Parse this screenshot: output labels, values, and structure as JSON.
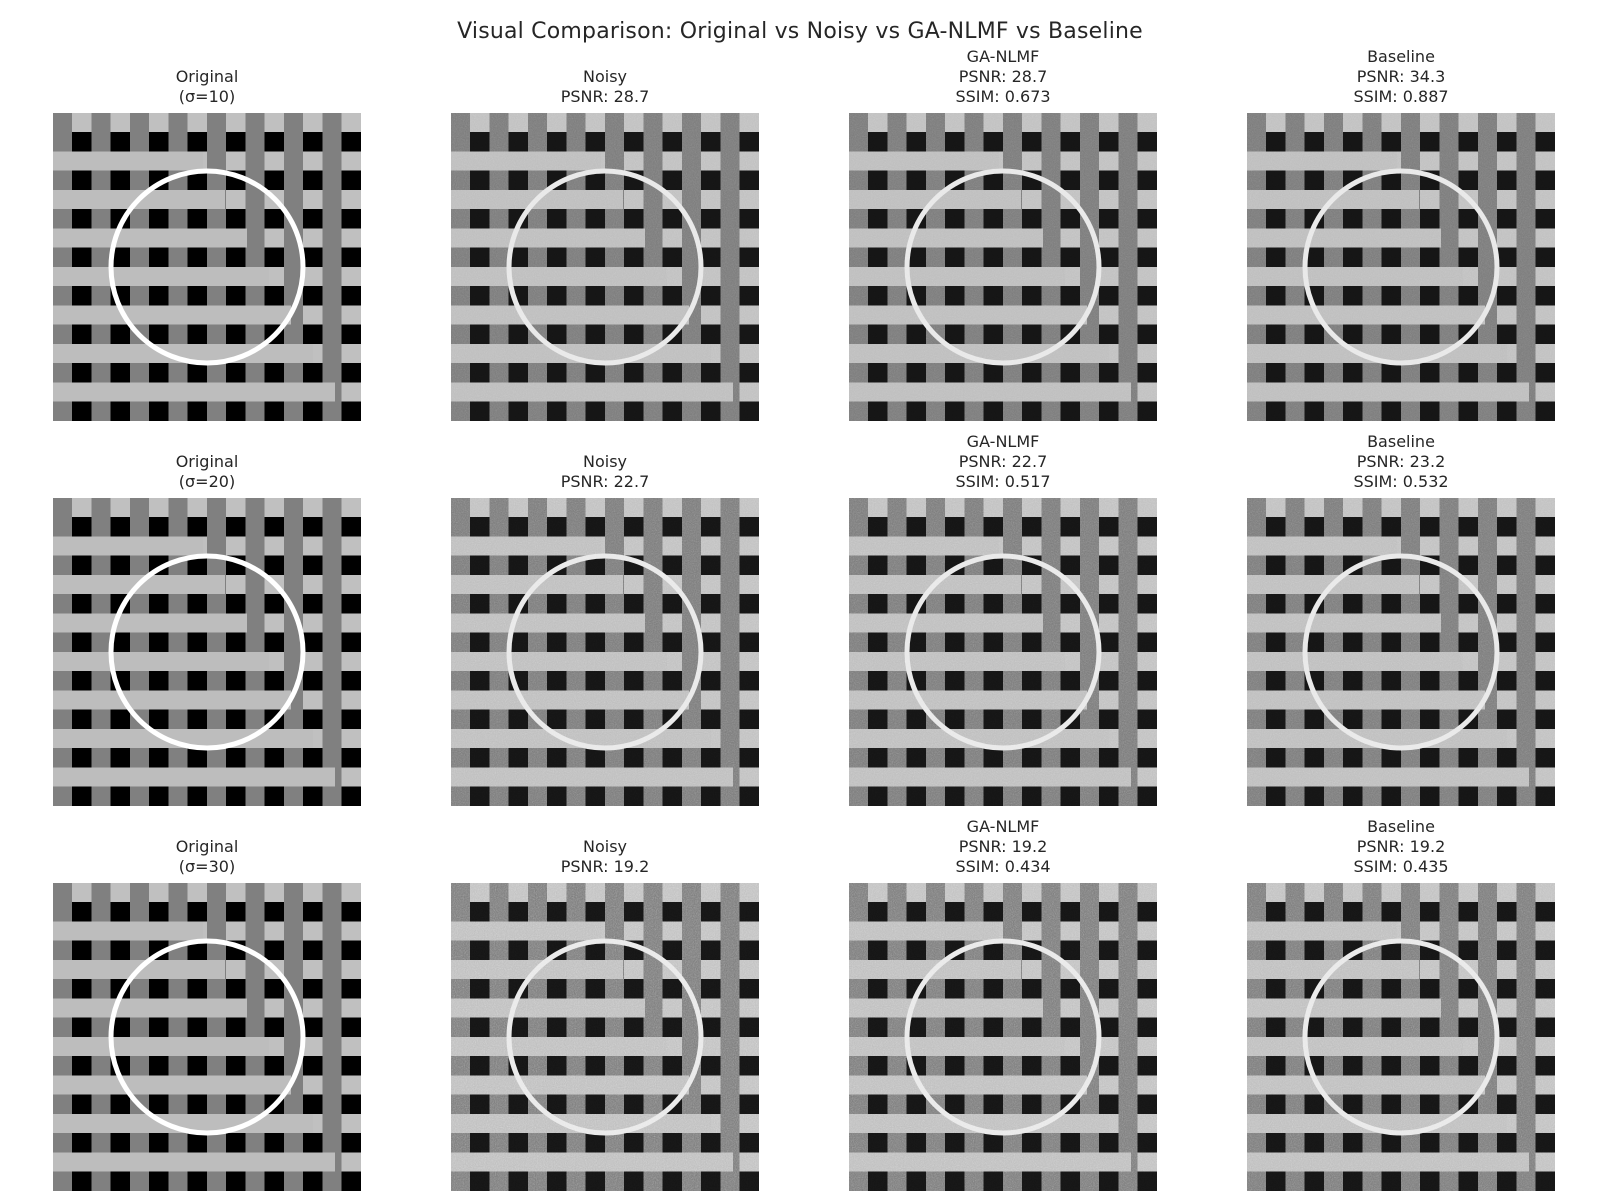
{
  "figure": {
    "title": "Visual Comparison: Original vs Noisy vs GA-NLMF vs Baseline",
    "rows": [
      {
        "sigma": 10,
        "panels": [
          {
            "kind": "original",
            "lines": [
              "Original",
              "(σ=10)"
            ]
          },
          {
            "kind": "noisy",
            "lines": [
              "Noisy",
              "PSNR: 28.7"
            ]
          },
          {
            "kind": "ga-nlmf",
            "lines": [
              "GA-NLMF",
              "PSNR: 28.7",
              "SSIM: 0.673"
            ]
          },
          {
            "kind": "baseline",
            "lines": [
              "Baseline",
              "PSNR: 34.3",
              "SSIM: 0.887"
            ]
          }
        ]
      },
      {
        "sigma": 20,
        "panels": [
          {
            "kind": "original",
            "lines": [
              "Original",
              "(σ=20)"
            ]
          },
          {
            "kind": "noisy",
            "lines": [
              "Noisy",
              "PSNR: 22.7"
            ]
          },
          {
            "kind": "ga-nlmf",
            "lines": [
              "GA-NLMF",
              "PSNR: 22.7",
              "SSIM: 0.517"
            ]
          },
          {
            "kind": "baseline",
            "lines": [
              "Baseline",
              "PSNR: 23.2",
              "SSIM: 0.532"
            ]
          }
        ]
      },
      {
        "sigma": 30,
        "panels": [
          {
            "kind": "original",
            "lines": [
              "Original",
              "(σ=30)"
            ]
          },
          {
            "kind": "noisy",
            "lines": [
              "Noisy",
              "PSNR: 19.2"
            ]
          },
          {
            "kind": "ga-nlmf",
            "lines": [
              "GA-NLMF",
              "PSNR: 19.2",
              "SSIM: 0.434"
            ]
          },
          {
            "kind": "baseline",
            "lines": [
              "Baseline",
              "PSNR: 19.2",
              "SSIM: 0.435"
            ]
          }
        ]
      }
    ]
  }
}
